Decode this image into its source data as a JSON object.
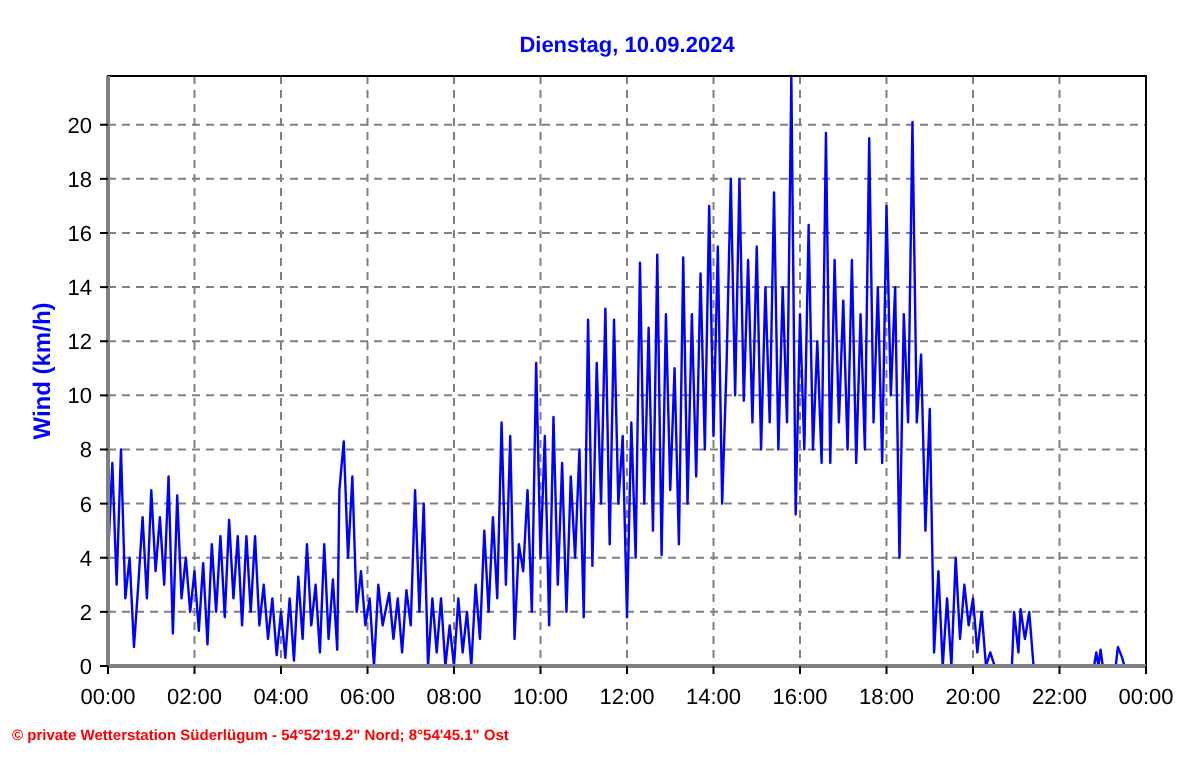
{
  "chart_data": {
    "type": "line",
    "title": "Dienstag, 10.09.2024",
    "ylabel": "Wind  (km/h)",
    "annotations": [
      "© private Wetterstation Süderlügum  -  54°52'19.2\" Nord; 8°54'45.1\" Ost"
    ],
    "xlim": [
      0,
      24
    ],
    "xticks": [
      {
        "value": 0,
        "label": "00:00"
      },
      {
        "value": 2,
        "label": "02:00"
      },
      {
        "value": 4,
        "label": "04:00"
      },
      {
        "value": 6,
        "label": "06:00"
      },
      {
        "value": 8,
        "label": "08:00"
      },
      {
        "value": 10,
        "label": "10:00"
      },
      {
        "value": 12,
        "label": "12:00"
      },
      {
        "value": 14,
        "label": "14:00"
      },
      {
        "value": 16,
        "label": "16:00"
      },
      {
        "value": 18,
        "label": "18:00"
      },
      {
        "value": 20,
        "label": "20:00"
      },
      {
        "value": 22,
        "label": "22:00"
      },
      {
        "value": 24,
        "label": "00:00"
      }
    ],
    "ylim": [
      0,
      21.8
    ],
    "yticks": [
      0,
      2,
      4,
      6,
      8,
      10,
      12,
      14,
      16,
      18,
      20
    ],
    "grid": true,
    "marker": "none",
    "line_style": "solid",
    "x": [
      0,
      0.1,
      0.2,
      0.3,
      0.4,
      0.5,
      0.6,
      0.7,
      0.8,
      0.9,
      1,
      1.1,
      1.2,
      1.3,
      1.4,
      1.5,
      1.6,
      1.7,
      1.8,
      1.9,
      2,
      2.1,
      2.2,
      2.3,
      2.4,
      2.5,
      2.6,
      2.7,
      2.8,
      2.9,
      3,
      3.1,
      3.2,
      3.3,
      3.4,
      3.5,
      3.6,
      3.7,
      3.8,
      3.9,
      4,
      4.1,
      4.2,
      4.3,
      4.4,
      4.5,
      4.6,
      4.7,
      4.8,
      4.9,
      5,
      5.1,
      5.2,
      5.3,
      5.35,
      5.45,
      5.55,
      5.65,
      5.75,
      5.85,
      5.95,
      6.05,
      6.15,
      6.25,
      6.35,
      6.5,
      6.6,
      6.7,
      6.8,
      6.9,
      7,
      7.1,
      7.2,
      7.3,
      7.4,
      7.5,
      7.6,
      7.7,
      7.8,
      7.9,
      8,
      8.1,
      8.2,
      8.3,
      8.4,
      8.5,
      8.6,
      8.7,
      8.8,
      8.9,
      9,
      9.1,
      9.2,
      9.3,
      9.4,
      9.5,
      9.6,
      9.7,
      9.8,
      9.9,
      10,
      10.1,
      10.2,
      10.3,
      10.4,
      10.5,
      10.6,
      10.7,
      10.8,
      10.9,
      11,
      11.1,
      11.2,
      11.3,
      11.4,
      11.5,
      11.6,
      11.7,
      11.8,
      11.9,
      12,
      12.1,
      12.2,
      12.3,
      12.4,
      12.5,
      12.6,
      12.7,
      12.8,
      12.9,
      13,
      13.1,
      13.2,
      13.3,
      13.4,
      13.5,
      13.6,
      13.7,
      13.8,
      13.9,
      14,
      14.1,
      14.2,
      14.3,
      14.4,
      14.5,
      14.6,
      14.7,
      14.8,
      14.9,
      15,
      15.1,
      15.2,
      15.3,
      15.4,
      15.5,
      15.6,
      15.7,
      15.8,
      15.9,
      16,
      16.1,
      16.2,
      16.3,
      16.4,
      16.5,
      16.6,
      16.7,
      16.8,
      16.9,
      17,
      17.1,
      17.2,
      17.3,
      17.4,
      17.5,
      17.6,
      17.7,
      17.8,
      17.9,
      18,
      18.1,
      18.2,
      18.3,
      18.4,
      18.5,
      18.6,
      18.7,
      18.8,
      18.9,
      19,
      19.1,
      19.2,
      19.3,
      19.4,
      19.5,
      19.6,
      19.7,
      19.8,
      19.9,
      20,
      20.1,
      20.2,
      20.3,
      20.4,
      20.5,
      20.9,
      20.95,
      21.05,
      21.1,
      21.2,
      21.3,
      21.4,
      22.8,
      22.85,
      22.9,
      22.95,
      23,
      23.3,
      23.35,
      23.45,
      23.5
    ],
    "series": [
      {
        "color": "#0000ff",
        "values": [
          4,
          7.5,
          3,
          8,
          2.5,
          4,
          0.7,
          3,
          5.5,
          2.5,
          6.5,
          3.5,
          5.5,
          3,
          7,
          1.2,
          6.3,
          2.5,
          4,
          2,
          3.5,
          1.3,
          3.8,
          0.8,
          4.5,
          2,
          4.8,
          1.8,
          5.4,
          2.5,
          4.8,
          1.5,
          4.8,
          2,
          4.8,
          1.5,
          3,
          1,
          2.5,
          0.4,
          2,
          0.3,
          2.5,
          0.2,
          3.3,
          1,
          4.5,
          1.5,
          3,
          0.5,
          4.5,
          1,
          3.2,
          0.6,
          6.5,
          8.3,
          4,
          7,
          2,
          3.5,
          1.5,
          2.5,
          0,
          3,
          1.5,
          2.7,
          1,
          2.5,
          0.5,
          2.8,
          1.5,
          6.5,
          2,
          6,
          0,
          2.5,
          0.5,
          2.5,
          0,
          1.5,
          0,
          2.5,
          0.5,
          2,
          0,
          3,
          1,
          5,
          2,
          5.5,
          2.5,
          9,
          3,
          8.5,
          1,
          4.5,
          3.5,
          6.5,
          2,
          11.2,
          4,
          8.5,
          1.5,
          9.2,
          3,
          7.5,
          2,
          7,
          4,
          8,
          1.8,
          12.8,
          3.7,
          11.2,
          6,
          13.2,
          4.5,
          12.8,
          6,
          8.5,
          1.8,
          9,
          4,
          14.9,
          6,
          12.5,
          5,
          15.2,
          4.1,
          13,
          6.5,
          11,
          4.5,
          15.1,
          6,
          13,
          7,
          14.5,
          8,
          17,
          8.5,
          15.5,
          6,
          11,
          18,
          10,
          18,
          9.8,
          15,
          9,
          15.5,
          8,
          14,
          9,
          17.5,
          8,
          14,
          9,
          21.8,
          5.6,
          13,
          8,
          16.3,
          8,
          12,
          7.5,
          19.7,
          7.5,
          15,
          9,
          13.5,
          8,
          15,
          7.5,
          13,
          8,
          19.5,
          9,
          14,
          7.5,
          17,
          10,
          14,
          4,
          13,
          9,
          20.1,
          9,
          11.5,
          5,
          9.5,
          0.5,
          3.5,
          0,
          2.5,
          0,
          4,
          1,
          3,
          1.5,
          2.5,
          0.5,
          2,
          0,
          0.5,
          0,
          0,
          2,
          0.5,
          2.1,
          1,
          2,
          0,
          0,
          0.5,
          0,
          0.6,
          0,
          0,
          0.7,
          0.3,
          0
        ]
      }
    ]
  }
}
